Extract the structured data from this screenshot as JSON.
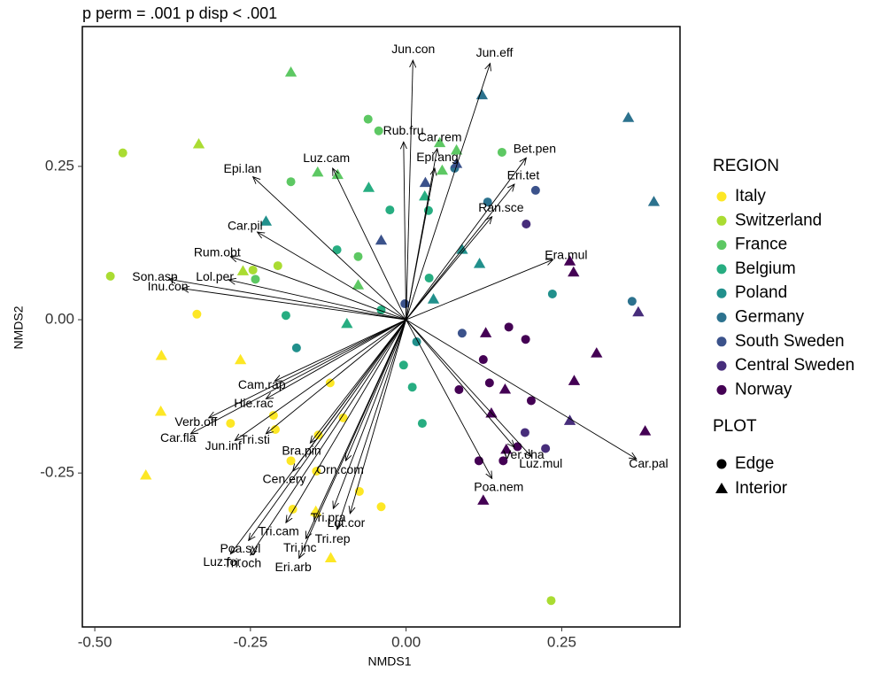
{
  "chart_data": {
    "type": "scatter",
    "title": "p perm = .001 p disp < .001",
    "xlabel": "NMDS1",
    "ylabel": "NMDS2",
    "xlim": [
      -0.52,
      0.44
    ],
    "ylim": [
      -0.501,
      0.478
    ],
    "xticks": [
      {
        "value": -0.5,
        "label": "-0.50"
      },
      {
        "value": -0.25,
        "label": "-0.25"
      },
      {
        "value": 0,
        "label": "0.00"
      },
      {
        "value": 0.25,
        "label": "0.25"
      }
    ],
    "yticks": [
      {
        "value": -0.25,
        "label": "-0.25"
      },
      {
        "value": 0,
        "label": "0.00"
      },
      {
        "value": 0.25,
        "label": "0.25"
      }
    ],
    "grid": false,
    "legend_title": "REGION",
    "plot_legend_title": "PLOT",
    "plots": [
      {
        "name": "Edge",
        "marker": "circle"
      },
      {
        "name": "Interior",
        "marker": "triangle"
      }
    ],
    "series": [
      {
        "name": "Italy",
        "color": "#FDE725",
        "x": [
          -0.336,
          -0.393,
          -0.266,
          -0.394,
          -0.418,
          -0.122,
          -0.282,
          -0.213,
          -0.101,
          -0.141,
          -0.185,
          -0.144,
          -0.182,
          -0.145,
          -0.075,
          -0.04,
          -0.145,
          -0.121,
          -0.21
        ],
        "y": [
          0.009,
          -0.059,
          -0.066,
          -0.15,
          -0.254,
          -0.103,
          -0.169,
          -0.156,
          -0.16,
          -0.188,
          -0.23,
          -0.247,
          -0.309,
          -0.316,
          -0.28,
          -0.305,
          -0.313,
          -0.389,
          -0.179
        ],
        "plot": [
          "Edge",
          "Interior",
          "Interior",
          "Interior",
          "Interior",
          "Edge",
          "Edge",
          "Edge",
          "Edge",
          "Edge",
          "Edge",
          "Edge",
          "Edge",
          "Edge",
          "Edge",
          "Edge",
          "Interior",
          "Interior",
          "Edge"
        ]
      },
      {
        "name": "Switzerland",
        "color": "#AADC32",
        "x": [
          -0.455,
          -0.333,
          -0.475,
          -0.262,
          -0.246,
          0.233,
          -0.206
        ],
        "y": [
          0.272,
          0.286,
          0.071,
          0.079,
          0.081,
          -0.458,
          0.088
        ],
        "plot": [
          "Edge",
          "Interior",
          "Edge",
          "Interior",
          "Edge",
          "Edge",
          "Edge"
        ]
      },
      {
        "name": "France",
        "color": "#5DC863",
        "x": [
          -0.185,
          -0.185,
          -0.142,
          -0.11,
          -0.044,
          0.054,
          0.081,
          0.154,
          0.058,
          -0.077,
          -0.077,
          -0.242,
          -0.061
        ],
        "y": [
          0.403,
          0.225,
          0.24,
          0.236,
          0.308,
          0.288,
          0.276,
          0.273,
          0.243,
          0.103,
          0.056,
          0.066,
          0.327
        ],
        "plot": [
          "Interior",
          "Edge",
          "Interior",
          "Interior",
          "Edge",
          "Interior",
          "Interior",
          "Edge",
          "Interior",
          "Edge",
          "Interior",
          "Edge",
          "Edge"
        ]
      },
      {
        "name": "Belgium",
        "color": "#27AD81",
        "x": [
          -0.06,
          -0.026,
          0.036,
          0.03,
          -0.111,
          -0.095,
          -0.04,
          0.037,
          -0.193,
          -0.004,
          0.01,
          0.026
        ],
        "y": [
          0.215,
          0.179,
          0.178,
          0.201,
          0.114,
          -0.007,
          0.016,
          0.068,
          0.007,
          -0.074,
          -0.11,
          -0.169
        ],
        "plot": [
          "Interior",
          "Edge",
          "Edge",
          "Interior",
          "Edge",
          "Interior",
          "Edge",
          "Edge",
          "Edge",
          "Edge",
          "Edge",
          "Edge"
        ]
      },
      {
        "name": "Poland",
        "color": "#21908C",
        "x": [
          -0.225,
          -0.176,
          0.09,
          0.118,
          0.044,
          0.017,
          0.235
        ],
        "y": [
          0.16,
          -0.046,
          0.114,
          0.091,
          0.033,
          -0.036,
          0.042
        ],
        "plot": [
          "Interior",
          "Edge",
          "Interior",
          "Interior",
          "Interior",
          "Edge",
          "Edge"
        ]
      },
      {
        "name": "Germany",
        "color": "#2C728E",
        "x": [
          0.122,
          0.357,
          0.398,
          0.131,
          0.363,
          0.078
        ],
        "y": [
          0.366,
          0.329,
          0.192,
          0.192,
          0.03,
          0.247
        ],
        "plot": [
          "Interior",
          "Interior",
          "Interior",
          "Edge",
          "Edge",
          "Edge"
        ]
      },
      {
        "name": "South Sweden",
        "color": "#3B528B",
        "x": [
          -0.04,
          0.031,
          -0.002,
          0.09,
          0.208,
          0.081
        ],
        "y": [
          0.129,
          0.223,
          0.026,
          -0.022,
          0.211,
          0.254
        ],
        "plot": [
          "Interior",
          "Interior",
          "Edge",
          "Edge",
          "Edge",
          "Interior"
        ]
      },
      {
        "name": "Central Sweden",
        "color": "#472D7B",
        "x": [
          0.373,
          0.263,
          0.193,
          0.191,
          0.224
        ],
        "y": [
          0.012,
          -0.165,
          0.156,
          -0.184,
          -0.21
        ],
        "plot": [
          "Interior",
          "Interior",
          "Edge",
          "Edge",
          "Edge"
        ]
      },
      {
        "name": "Norway",
        "color": "#440154",
        "x": [
          0.263,
          0.269,
          0.128,
          0.165,
          0.192,
          0.124,
          0.085,
          0.134,
          0.159,
          0.201,
          0.137,
          0.27,
          0.306,
          0.384,
          0.117,
          0.156,
          0.124,
          0.179,
          0.161
        ],
        "y": [
          0.095,
          0.077,
          -0.022,
          -0.012,
          -0.032,
          -0.065,
          -0.114,
          -0.103,
          -0.114,
          -0.132,
          -0.153,
          -0.1,
          -0.055,
          -0.182,
          -0.23,
          -0.23,
          -0.295,
          -0.207,
          -0.212
        ],
        "plot": [
          "Interior",
          "Interior",
          "Interior",
          "Edge",
          "Edge",
          "Edge",
          "Edge",
          "Edge",
          "Interior",
          "Edge",
          "Interior",
          "Interior",
          "Interior",
          "Interior",
          "Edge",
          "Edge",
          "Interior",
          "Edge",
          "Interior"
        ]
      }
    ],
    "vectors": {
      "color": "#000000",
      "labels": [
        "Jun.con",
        "Jun.eff",
        "Rub.fru",
        "Car.rem",
        "Epi.ang",
        "Bet.pen",
        "Eri.tet",
        "Ran.sce",
        "Era.mul",
        "Car.pal",
        "Luz.mul",
        "Ver.cha",
        "Poa.nem",
        "Luz.cam",
        "Epi.lan",
        "Car.pil",
        "Rum.obt",
        "Son.asp",
        "Inu.con",
        "Lol.per",
        "Cam.rap",
        "Hie.rac",
        "Verb.off",
        "Car.fla",
        "Jun.inf",
        "Tri.sti",
        "Bra.pin",
        "Orn.com",
        "Cen.ery",
        "Tri.pra",
        "Tri.cam",
        "Lot.cor",
        "Poa.syl",
        "Tri.inc",
        "Tri.rep",
        "Tri.och",
        "Luz.for",
        "Eri.arb"
      ],
      "x": [
        0.011,
        0.135,
        -0.004,
        0.05,
        0.046,
        0.193,
        0.174,
        0.138,
        0.236,
        0.37,
        0.201,
        0.174,
        0.138,
        -0.118,
        -0.246,
        -0.239,
        -0.282,
        -0.381,
        -0.36,
        -0.285,
        -0.211,
        -0.225,
        -0.317,
        -0.346,
        -0.275,
        -0.225,
        -0.154,
        -0.097,
        -0.182,
        -0.117,
        -0.193,
        -0.09,
        -0.253,
        -0.161,
        -0.111,
        -0.25,
        -0.282,
        -0.172
      ],
      "y": [
        0.423,
        0.418,
        0.29,
        0.279,
        0.247,
        0.264,
        0.221,
        0.168,
        0.098,
        -0.227,
        -0.223,
        -0.208,
        -0.259,
        0.247,
        0.233,
        0.143,
        0.103,
        0.066,
        0.051,
        0.065,
        -0.1,
        -0.129,
        -0.16,
        -0.186,
        -0.197,
        -0.186,
        -0.201,
        -0.23,
        -0.247,
        -0.308,
        -0.331,
        -0.316,
        -0.36,
        -0.357,
        -0.342,
        -0.384,
        -0.382,
        -0.389
      ]
    }
  }
}
